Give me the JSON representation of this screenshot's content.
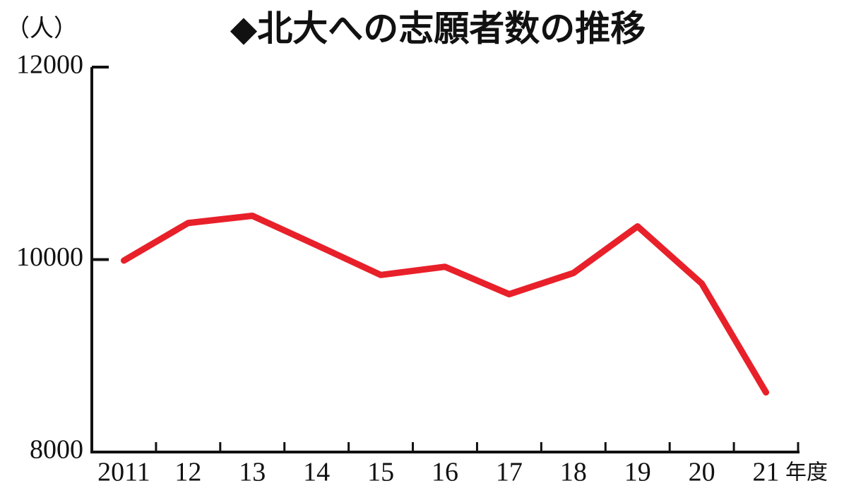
{
  "chart_data": {
    "type": "line",
    "title": "◆北大への志願者数の推移",
    "y_unit_label": "（人）",
    "x_axis_label": "年度",
    "categories": [
      "2011",
      "12",
      "13",
      "14",
      "15",
      "16",
      "17",
      "18",
      "19",
      "20",
      "21"
    ],
    "values": [
      9990,
      10380,
      10455,
      10150,
      9840,
      9925,
      9640,
      9860,
      10345,
      9750,
      8620
    ],
    "color": "#e8202a",
    "ylim": [
      8000,
      12000
    ],
    "yticks": [
      8000,
      10000,
      12000
    ]
  }
}
